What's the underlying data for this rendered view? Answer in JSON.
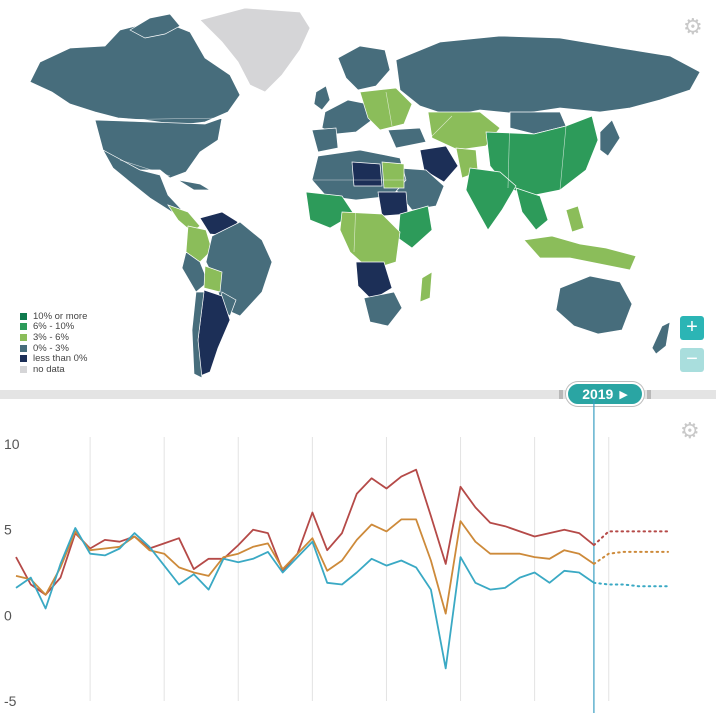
{
  "legend": {
    "items": [
      {
        "label": "10% or more",
        "color": "#0f7a4d"
      },
      {
        "label": "6% - 10%",
        "color": "#2d9b5a"
      },
      {
        "label": "3% - 6%",
        "color": "#8bbd5a"
      },
      {
        "label": "0% - 3%",
        "color": "#476d7c"
      },
      {
        "label": "less than 0%",
        "color": "#1c2f57"
      },
      {
        "label": "no data",
        "color": "#d5d5d7"
      }
    ]
  },
  "map_colors": {
    "ocean": "#ffffff",
    "no_data": "#d5d5d7",
    "low": "#476d7c",
    "mid": "#8bbd5a",
    "high": "#2d9b5a",
    "top": "#0f7a4d",
    "neg": "#1c2f57"
  },
  "controls": {
    "zoom_in": "+",
    "zoom_out": "−",
    "year": "2019",
    "play_icon": "▶",
    "gear_icon": "⚙"
  },
  "chart_data": {
    "type": "line",
    "y_ticks": [
      "10",
      "5",
      "0",
      "-5"
    ],
    "ylim": [
      -5,
      10
    ],
    "x_start": 1980,
    "x_end": 2024,
    "current_year": 2019,
    "grid": "vertical",
    "series": [
      {
        "color": "#b54a48",
        "values": [
          3.4,
          1.8,
          1.2,
          2.2,
          4.8,
          3.9,
          4.4,
          4.3,
          4.6,
          3.9,
          4.2,
          4.5,
          2.7,
          3.3,
          3.3,
          4.1,
          5.0,
          4.8,
          2.6,
          3.6,
          6.0,
          3.8,
          4.8,
          7.1,
          8.0,
          7.4,
          8.1,
          8.5,
          5.8,
          3.0,
          7.5,
          6.3,
          5.4,
          5.2,
          4.9,
          4.6,
          4.8,
          5.0,
          4.8,
          4.1
        ],
        "projection": [
          4.9,
          4.9,
          4.9,
          4.9,
          4.9
        ]
      },
      {
        "color": "#cd8a3a",
        "values": [
          2.3,
          2.1,
          1.2,
          2.8,
          4.9,
          3.8,
          3.9,
          4.0,
          4.6,
          3.8,
          3.6,
          2.8,
          2.5,
          2.3,
          3.4,
          3.6,
          4.0,
          4.2,
          2.7,
          3.6,
          4.5,
          2.6,
          3.2,
          4.4,
          5.3,
          4.9,
          5.6,
          5.6,
          3.2,
          0.1,
          5.5,
          4.3,
          3.6,
          3.6,
          3.6,
          3.4,
          3.3,
          3.8,
          3.6,
          3.0
        ],
        "projection": [
          3.6,
          3.7,
          3.7,
          3.7,
          3.7
        ]
      },
      {
        "color": "#3aa9c4",
        "values": [
          1.6,
          2.2,
          0.4,
          3.0,
          5.1,
          3.6,
          3.5,
          3.9,
          4.8,
          4.0,
          2.9,
          1.8,
          2.4,
          1.5,
          3.3,
          3.1,
          3.3,
          3.7,
          2.5,
          3.4,
          4.3,
          1.9,
          1.8,
          2.5,
          3.3,
          2.9,
          3.2,
          2.8,
          1.5,
          -3.1,
          3.4,
          1.9,
          1.5,
          1.6,
          2.2,
          2.5,
          1.9,
          2.6,
          2.5,
          1.9
        ],
        "projection": [
          1.8,
          1.8,
          1.7,
          1.7,
          1.7
        ]
      }
    ]
  }
}
